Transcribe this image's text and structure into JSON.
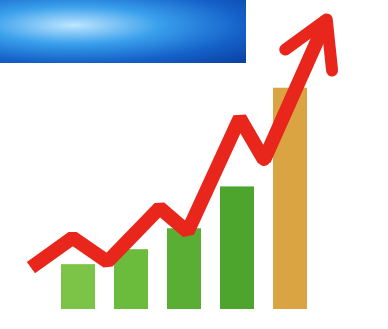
{
  "chart_data": [
    {
      "type": "bar",
      "categories": [
        null,
        null,
        null,
        null,
        null
      ],
      "values": [
        15,
        20,
        27,
        41,
        74
      ],
      "colors": [
        "#7cc447",
        "#6bbb3c",
        "#5aae34",
        "#4ea52e",
        "#d9a441"
      ],
      "ylim": [
        0,
        100
      ],
      "tick_labels": false
    },
    {
      "type": "line",
      "x": [
        3,
        15,
        25,
        40,
        48,
        63,
        70,
        88
      ],
      "values": [
        14,
        24,
        16,
        34,
        26,
        64,
        50,
        97
      ],
      "color": "#e8261c",
      "marker": "arrow",
      "xlim": [
        0,
        100
      ],
      "ylim": [
        0,
        100
      ],
      "tick_labels": false
    }
  ]
}
